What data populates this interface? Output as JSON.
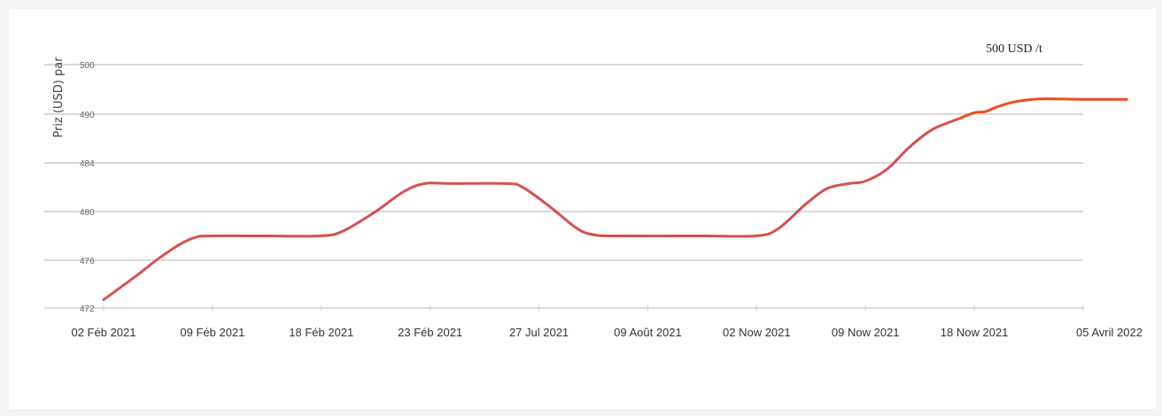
{
  "chart_data": {
    "type": "line",
    "ylabel": "Priz (USD) par",
    "y_ticks": [
      "500",
      "490",
      "484",
      "480",
      "476",
      "472"
    ],
    "x_ticks": [
      "02 Féb 2021",
      "09 Féb 2021",
      "18 Féb 2021",
      "23 Féb 2021",
      "27 Jul 2021",
      "09 Août 2021",
      "02 Now 2021",
      "09 Now 2021",
      "18 Now 2021",
      "05 Avril 2022"
    ],
    "annotation": "500 USD /t",
    "grid": true,
    "series": [
      {
        "color": "#d65050",
        "values": [
          {
            "x": 0.0,
            "y": 472.7
          },
          {
            "x": 0.3,
            "y": 474.7
          },
          {
            "x": 0.5,
            "y": 476.1
          },
          {
            "x": 0.7,
            "y": 477.3
          },
          {
            "x": 0.85,
            "y": 477.9
          },
          {
            "x": 1.0,
            "y": 478.0
          },
          {
            "x": 1.5,
            "y": 478.0
          },
          {
            "x": 2.0,
            "y": 478.0
          },
          {
            "x": 2.2,
            "y": 478.4
          },
          {
            "x": 2.5,
            "y": 480.0
          },
          {
            "x": 2.75,
            "y": 481.6
          },
          {
            "x": 2.95,
            "y": 482.3
          },
          {
            "x": 3.2,
            "y": 482.3
          },
          {
            "x": 3.7,
            "y": 482.3
          },
          {
            "x": 3.85,
            "y": 482.0
          },
          {
            "x": 4.1,
            "y": 480.4
          },
          {
            "x": 4.35,
            "y": 478.6
          },
          {
            "x": 4.5,
            "y": 478.1
          },
          {
            "x": 4.7,
            "y": 478.0
          },
          {
            "x": 5.5,
            "y": 478.0
          },
          {
            "x": 6.0,
            "y": 478.0
          },
          {
            "x": 6.2,
            "y": 478.6
          },
          {
            "x": 6.45,
            "y": 480.6
          },
          {
            "x": 6.65,
            "y": 481.9
          },
          {
            "x": 6.85,
            "y": 482.3
          },
          {
            "x": 7.0,
            "y": 482.5
          },
          {
            "x": 7.2,
            "y": 483.5
          },
          {
            "x": 7.4,
            "y": 485.9
          },
          {
            "x": 7.6,
            "y": 488.0
          },
          {
            "x": 7.75,
            "y": 488.9
          },
          {
            "x": 7.85,
            "y": 489.4
          }
        ]
      },
      {
        "color": "#ee4d22",
        "values": [
          {
            "x": 7.85,
            "y": 489.4
          },
          {
            "x": 8.0,
            "y": 490.3
          },
          {
            "x": 8.1,
            "y": 490.5
          },
          {
            "x": 8.2,
            "y": 491.4
          },
          {
            "x": 8.35,
            "y": 492.4
          },
          {
            "x": 8.5,
            "y": 492.9
          },
          {
            "x": 8.65,
            "y": 493.1
          },
          {
            "x": 9.0,
            "y": 493.0
          },
          {
            "x": 9.4,
            "y": 493.0
          }
        ]
      }
    ]
  }
}
